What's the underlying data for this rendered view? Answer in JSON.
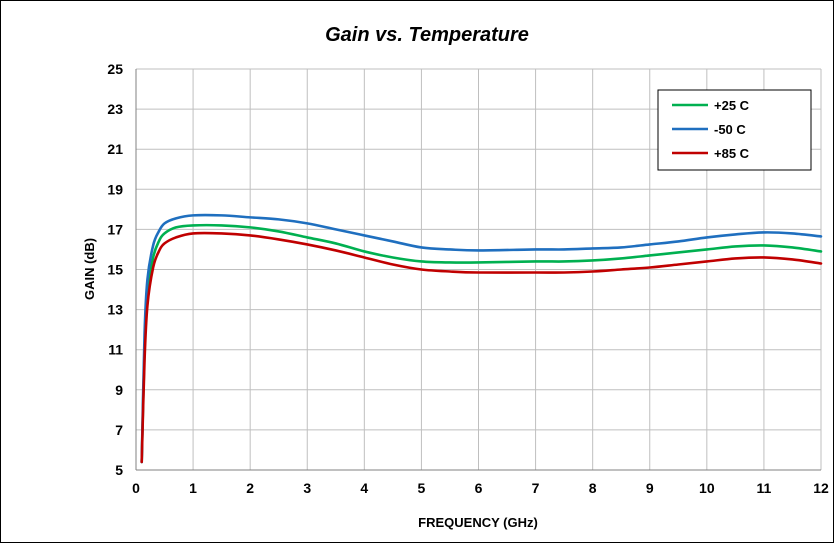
{
  "chart_data": {
    "type": "line",
    "title": "Gain vs. Temperature",
    "xlabel": "FREQUENCY (GHz)",
    "ylabel": "GAIN (dB)",
    "xlim": [
      0,
      12
    ],
    "ylim": [
      5,
      25
    ],
    "xticks": [
      0,
      1,
      2,
      3,
      4,
      5,
      6,
      7,
      8,
      9,
      10,
      11,
      12
    ],
    "yticks": [
      5,
      7,
      9,
      11,
      13,
      15,
      17,
      19,
      21,
      23,
      25
    ],
    "grid": true,
    "legend_position": "top-right",
    "series": [
      {
        "name": "+25 C",
        "color": "#00b050",
        "x": [
          0.1,
          0.15,
          0.2,
          0.3,
          0.4,
          0.5,
          0.7,
          1.0,
          1.5,
          2.0,
          2.5,
          3.0,
          3.5,
          4.0,
          4.5,
          5.0,
          5.5,
          6.0,
          7.0,
          7.5,
          8.0,
          8.5,
          9.0,
          9.5,
          10.0,
          10.5,
          11.0,
          11.5,
          12.0
        ],
        "y": [
          5.4,
          11.0,
          13.8,
          15.6,
          16.4,
          16.8,
          17.1,
          17.2,
          17.2,
          17.1,
          16.9,
          16.6,
          16.3,
          15.9,
          15.6,
          15.4,
          15.35,
          15.35,
          15.4,
          15.4,
          15.45,
          15.55,
          15.7,
          15.85,
          16.0,
          16.15,
          16.2,
          16.1,
          15.9
        ]
      },
      {
        "name": "-50 C",
        "color": "#1f6fbf",
        "x": [
          0.1,
          0.15,
          0.2,
          0.3,
          0.4,
          0.5,
          0.7,
          1.0,
          1.5,
          2.0,
          2.5,
          3.0,
          3.5,
          4.0,
          4.5,
          5.0,
          5.5,
          6.0,
          7.0,
          7.5,
          8.0,
          8.5,
          9.0,
          9.5,
          10.0,
          10.5,
          11.0,
          11.5,
          12.0
        ],
        "y": [
          5.4,
          11.8,
          14.5,
          16.2,
          16.9,
          17.3,
          17.55,
          17.7,
          17.7,
          17.6,
          17.5,
          17.3,
          17.0,
          16.7,
          16.4,
          16.1,
          16.0,
          15.95,
          16.0,
          16.0,
          16.05,
          16.1,
          16.25,
          16.4,
          16.6,
          16.75,
          16.85,
          16.8,
          16.65
        ]
      },
      {
        "name": "+85 C",
        "color": "#c00000",
        "x": [
          0.1,
          0.15,
          0.2,
          0.3,
          0.4,
          0.5,
          0.7,
          1.0,
          1.5,
          2.0,
          2.5,
          3.0,
          3.5,
          4.0,
          4.5,
          5.0,
          5.5,
          6.0,
          7.0,
          7.5,
          8.0,
          8.5,
          9.0,
          9.5,
          10.0,
          10.5,
          11.0,
          11.5,
          12.0
        ],
        "y": [
          5.4,
          10.5,
          13.2,
          15.1,
          15.9,
          16.3,
          16.6,
          16.8,
          16.8,
          16.7,
          16.5,
          16.25,
          15.95,
          15.6,
          15.25,
          15.0,
          14.9,
          14.85,
          14.85,
          14.85,
          14.9,
          15.0,
          15.1,
          15.25,
          15.4,
          15.55,
          15.6,
          15.5,
          15.3
        ]
      }
    ]
  }
}
